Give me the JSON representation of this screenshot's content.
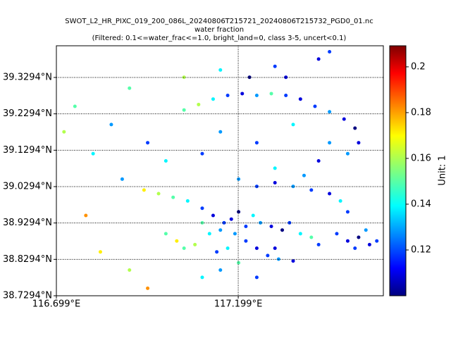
{
  "chart_data": {
    "type": "scatter",
    "title": "SWOT_L2_HR_PIXC_019_200_086L_20240806T215721_20240806T215732_PGD0_01.nc",
    "subtitle": "water fraction",
    "filter_note": "(Filtered: 0.1<=water_frac<=1.0, bright_land=0, class 3-5, uncert<0.1)",
    "xlim": [
      116.699,
      117.598
    ],
    "ylim": [
      38.7294,
      39.4165
    ],
    "xticks": [
      {
        "value": 116.699,
        "label": "116.699°E"
      },
      {
        "value": 117.199,
        "label": "117.199°E"
      }
    ],
    "yticks": [
      {
        "value": 38.7294,
        "label": "38.7294°N"
      },
      {
        "value": 38.8294,
        "label": "38.8294°N"
      },
      {
        "value": 38.9294,
        "label": "38.9294°N"
      },
      {
        "value": 39.0294,
        "label": "39.0294°N"
      },
      {
        "value": 39.1294,
        "label": "39.1294°N"
      },
      {
        "value": 39.2294,
        "label": "39.2294°N"
      },
      {
        "value": 39.3294,
        "label": "39.3294°N"
      }
    ],
    "grid": true,
    "colormap": "jet",
    "clim": [
      0.1,
      0.2092
    ],
    "colorbar_label": "Unit: 1",
    "colorbar_ticks": [
      0.12,
      0.14,
      0.16,
      0.18,
      0.2
    ],
    "x": [
      117.05,
      117.09,
      117.13,
      117.17,
      117.21,
      117.25,
      117.29,
      117.33,
      117.37,
      117.41,
      117.45,
      117.49,
      117.52,
      117.53,
      117.5,
      117.42,
      117.45,
      117.3,
      117.33,
      117.23,
      116.94,
      116.98,
      117.02,
      117.06,
      117.1,
      117.13,
      117.16,
      117.19,
      117.22,
      117.25,
      117.28,
      117.31,
      117.35,
      117.1,
      117.12,
      117.15,
      117.18,
      117.2,
      117.22,
      117.24,
      117.26,
      117.29,
      117.32,
      117.34,
      117.37,
      117.4,
      117.42,
      117.08,
      117.05,
      117.03,
      117.14,
      117.17,
      117.2,
      117.15,
      117.3,
      117.5,
      117.53,
      117.56,
      117.58,
      117.52,
      117.55,
      117.47,
      117.2,
      117.25,
      117.3,
      117.35,
      117.4,
      117.45,
      117.48,
      117.5,
      117.3,
      117.38,
      116.75,
      116.72,
      116.8,
      116.85,
      116.9,
      116.95,
      117.0,
      116.78,
      116.82,
      116.9,
      116.95,
      117.0,
      116.88,
      117.1,
      117.15,
      117.25,
      117.35,
      117.42,
      117.45,
      117.1,
      117.25,
      117.05,
      117.15
    ],
    "y": [
      39.24,
      39.255,
      39.27,
      39.28,
      39.285,
      39.28,
      39.285,
      39.28,
      39.27,
      39.25,
      39.235,
      39.215,
      39.19,
      39.15,
      39.12,
      39.38,
      39.4,
      39.36,
      39.33,
      39.33,
      39.02,
      39.01,
      39.0,
      38.99,
      38.97,
      38.95,
      38.93,
      38.9,
      38.88,
      38.86,
      38.84,
      38.83,
      38.825,
      38.93,
      38.9,
      38.91,
      38.94,
      38.96,
      38.92,
      38.95,
      38.93,
      38.92,
      38.91,
      38.93,
      38.9,
      38.89,
      38.87,
      38.87,
      38.86,
      38.88,
      38.85,
      38.86,
      38.82,
      38.8,
      38.86,
      38.88,
      38.89,
      38.87,
      38.88,
      38.86,
      38.91,
      38.9,
      39.05,
      39.03,
      39.04,
      39.03,
      39.02,
      39.01,
      38.99,
      38.96,
      39.08,
      39.06,
      39.25,
      39.18,
      39.12,
      39.2,
      39.3,
      39.15,
      39.1,
      38.95,
      38.85,
      38.8,
      38.75,
      38.9,
      39.05,
      39.12,
      39.18,
      39.15,
      39.2,
      39.1,
      39.15,
      38.78,
      38.78,
      39.33,
      39.35
    ],
    "values": [
      0.15,
      0.16,
      0.14,
      0.12,
      0.11,
      0.13,
      0.15,
      0.12,
      0.11,
      0.12,
      0.13,
      0.11,
      0.1,
      0.11,
      0.13,
      0.11,
      0.12,
      0.12,
      0.11,
      0.1,
      0.17,
      0.16,
      0.15,
      0.14,
      0.12,
      0.11,
      0.12,
      0.13,
      0.12,
      0.11,
      0.12,
      0.13,
      0.11,
      0.15,
      0.14,
      0.13,
      0.11,
      0.1,
      0.12,
      0.14,
      0.13,
      0.11,
      0.1,
      0.12,
      0.14,
      0.15,
      0.12,
      0.16,
      0.15,
      0.17,
      0.12,
      0.14,
      0.15,
      0.13,
      0.11,
      0.11,
      0.1,
      0.11,
      0.12,
      0.12,
      0.13,
      0.12,
      0.13,
      0.12,
      0.11,
      0.13,
      0.12,
      0.11,
      0.14,
      0.12,
      0.14,
      0.13,
      0.15,
      0.16,
      0.14,
      0.13,
      0.15,
      0.12,
      0.14,
      0.18,
      0.17,
      0.16,
      0.18,
      0.15,
      0.13,
      0.12,
      0.13,
      0.12,
      0.14,
      0.11,
      0.13,
      0.14,
      0.12,
      0.16,
      0.14
    ]
  }
}
